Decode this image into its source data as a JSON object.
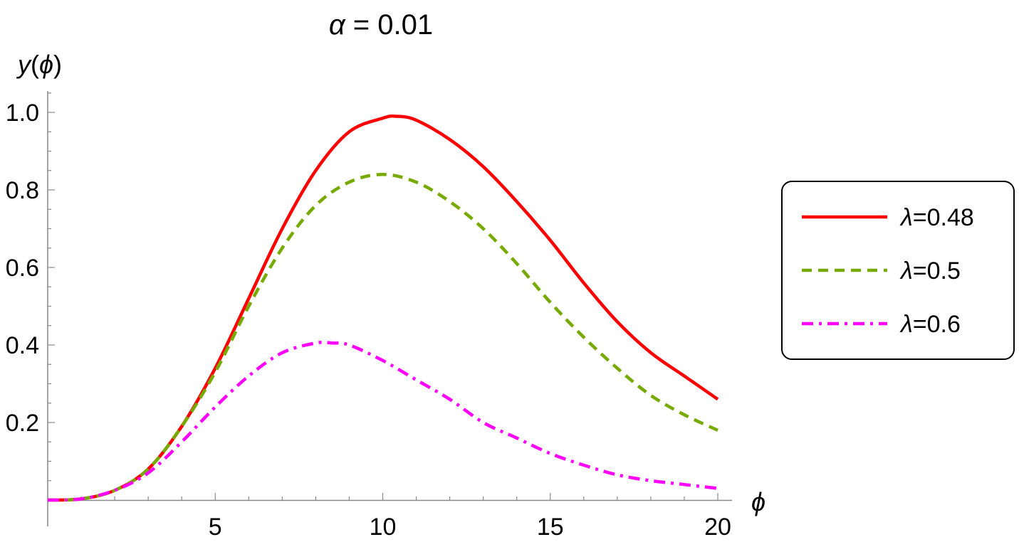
{
  "chart_data": {
    "type": "line",
    "title_symbol": "α",
    "title_rest": " = 0.01",
    "xlabel": "ϕ",
    "ylabel_parts": [
      "y",
      "(",
      "ϕ",
      ")"
    ],
    "xlim": [
      0,
      20
    ],
    "ylim": [
      0,
      1.0
    ],
    "xticks": [
      5,
      10,
      15,
      20
    ],
    "xtick_labels": [
      "5",
      "10",
      "15",
      "20"
    ],
    "yticks": [
      0.2,
      0.4,
      0.6,
      0.8,
      1.0
    ],
    "ytick_labels": [
      "0.2",
      "0.4",
      "0.6",
      "0.8",
      "1.0"
    ],
    "grid": false,
    "legend_position": "right",
    "series": [
      {
        "name": "λ=0.48",
        "name_symbol": "λ",
        "name_rest": "=0.48",
        "color": "#ff0000",
        "style": "solid",
        "x": [
          0,
          1,
          2,
          3,
          4,
          5,
          6,
          7,
          8,
          9,
          10,
          10.4,
          11,
          12,
          13,
          14,
          15,
          16,
          17,
          18,
          19,
          20
        ],
        "y": [
          0.0,
          0.003,
          0.025,
          0.08,
          0.19,
          0.34,
          0.52,
          0.7,
          0.85,
          0.95,
          0.985,
          0.99,
          0.98,
          0.93,
          0.86,
          0.77,
          0.67,
          0.56,
          0.46,
          0.38,
          0.32,
          0.26
        ]
      },
      {
        "name": "λ=0.5",
        "name_symbol": "λ",
        "name_rest": "=0.5",
        "color": "#77aa00",
        "style": "dashed",
        "x": [
          0,
          1,
          2,
          3,
          4,
          5,
          6,
          7,
          8,
          9,
          10,
          11,
          12,
          13,
          14,
          15,
          16,
          17,
          18,
          19,
          20
        ],
        "y": [
          0.0,
          0.003,
          0.025,
          0.08,
          0.19,
          0.33,
          0.5,
          0.65,
          0.76,
          0.82,
          0.84,
          0.82,
          0.77,
          0.7,
          0.61,
          0.51,
          0.42,
          0.34,
          0.27,
          0.22,
          0.18
        ]
      },
      {
        "name": "λ=0.6",
        "name_symbol": "λ",
        "name_rest": "=0.6",
        "color": "#ff00ff",
        "style": "dashdot",
        "x": [
          0,
          1,
          2,
          3,
          4,
          5,
          6,
          7,
          8,
          8.5,
          9,
          10,
          11,
          12,
          13,
          14,
          15,
          16,
          17,
          18,
          19,
          20
        ],
        "y": [
          0.0,
          0.003,
          0.025,
          0.07,
          0.15,
          0.24,
          0.32,
          0.38,
          0.405,
          0.405,
          0.4,
          0.36,
          0.31,
          0.26,
          0.2,
          0.16,
          0.12,
          0.09,
          0.065,
          0.05,
          0.04,
          0.03
        ]
      }
    ]
  }
}
